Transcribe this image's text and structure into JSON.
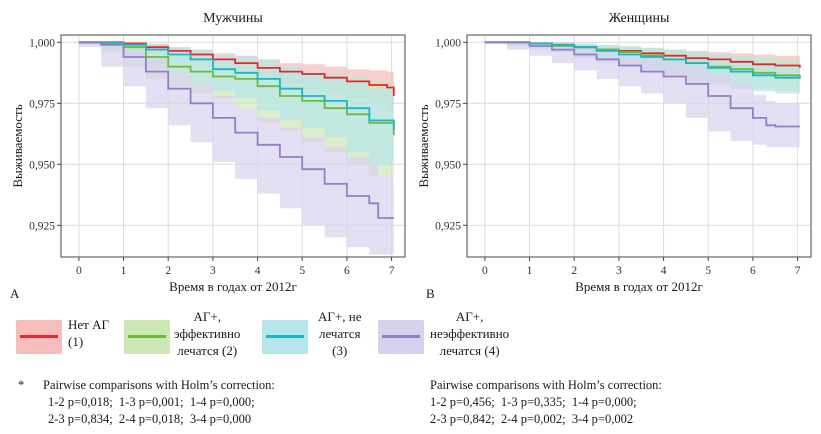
{
  "colors": {
    "series1": "#e8262b",
    "series1_band": "#f7bcbc",
    "series2": "#6dbb3a",
    "series2_band": "#cde7b5",
    "series3": "#19b6c8",
    "series3_band": "#b6e6ea",
    "series4": "#8f80c9",
    "series4_band": "#d8d1ee"
  },
  "chart_data": [
    {
      "type": "line",
      "panel_letter": "A",
      "title": "Мужчины",
      "xlabel": "Время в годах от 2012г",
      "ylabel": "Выживаемость",
      "xlim": [
        -0.4,
        7.3
      ],
      "ylim": [
        0.912,
        1.003
      ],
      "x_ticks": [
        "0",
        "1",
        "2",
        "3",
        "4",
        "5",
        "6",
        "7"
      ],
      "y_ticks": [
        "1,000",
        "0,975",
        "0,950",
        "0,925"
      ],
      "grid": true,
      "series": [
        {
          "name": "Нет АГ (1)",
          "x": [
            0,
            0.5,
            1,
            1.5,
            2,
            2.5,
            3,
            3.5,
            4,
            4.5,
            5,
            5.5,
            6,
            6.5,
            6.9,
            7.05
          ],
          "y": [
            1.0,
            1.0,
            0.9995,
            0.998,
            0.9965,
            0.995,
            0.993,
            0.9915,
            0.9895,
            0.988,
            0.987,
            0.9855,
            0.984,
            0.9825,
            0.9815,
            0.978
          ],
          "lower": [
            1.0,
            1.0,
            0.999,
            0.997,
            0.995,
            0.993,
            0.9905,
            0.9885,
            0.9865,
            0.9845,
            0.983,
            0.981,
            0.979,
            0.977,
            0.975,
            0.973
          ],
          "upper": [
            1.0,
            1.0,
            1.0,
            0.9993,
            0.998,
            0.997,
            0.9955,
            0.9945,
            0.993,
            0.9915,
            0.991,
            0.99,
            0.989,
            0.9885,
            0.988,
            0.986
          ]
        },
        {
          "name": "АГ+, эффективно лечатся (2)",
          "x": [
            0,
            0.5,
            1,
            1.5,
            2,
            2.5,
            3,
            3.5,
            4,
            4.5,
            5,
            5.5,
            6,
            6.5,
            7.05
          ],
          "y": [
            1.0,
            0.9995,
            0.998,
            0.994,
            0.99,
            0.988,
            0.986,
            0.985,
            0.982,
            0.978,
            0.976,
            0.973,
            0.9705,
            0.967,
            0.962
          ],
          "lower": [
            1.0,
            0.999,
            0.996,
            0.99,
            0.985,
            0.982,
            0.979,
            0.977,
            0.973,
            0.967,
            0.964,
            0.959,
            0.955,
            0.95,
            0.945
          ],
          "upper": [
            1.0,
            1.0,
            1.0,
            0.998,
            0.995,
            0.994,
            0.993,
            0.993,
            0.991,
            0.989,
            0.988,
            0.987,
            0.986,
            0.984,
            0.979
          ]
        },
        {
          "name": "АГ+, не лечатся (3)",
          "x": [
            0,
            0.5,
            1,
            1.5,
            2,
            2.5,
            3,
            3.5,
            4,
            4.5,
            5,
            5.5,
            6,
            6.5,
            7.05
          ],
          "y": [
            1.0,
            0.9998,
            0.999,
            0.997,
            0.995,
            0.993,
            0.989,
            0.9875,
            0.985,
            0.981,
            0.978,
            0.976,
            0.973,
            0.968,
            0.964
          ],
          "lower": [
            1.0,
            0.9993,
            0.997,
            0.994,
            0.991,
            0.988,
            0.983,
            0.98,
            0.977,
            0.972,
            0.968,
            0.965,
            0.961,
            0.955,
            0.95
          ],
          "upper": [
            1.0,
            1.0,
            1.0,
            0.9995,
            0.998,
            0.997,
            0.995,
            0.994,
            0.993,
            0.99,
            0.988,
            0.987,
            0.985,
            0.981,
            0.978
          ]
        },
        {
          "name": "АГ+, неэффективно лечатся (4)",
          "x": [
            0,
            0.5,
            1,
            1.5,
            2,
            2.5,
            3,
            3.5,
            4,
            4.5,
            5,
            5.5,
            6,
            6.5,
            6.7,
            7.05
          ],
          "y": [
            1.0,
            0.999,
            0.994,
            0.988,
            0.981,
            0.975,
            0.969,
            0.963,
            0.958,
            0.953,
            0.948,
            0.942,
            0.937,
            0.934,
            0.928,
            0.928
          ],
          "lower": [
            1.0,
            0.998,
            0.99,
            0.982,
            0.973,
            0.966,
            0.959,
            0.951,
            0.944,
            0.938,
            0.932,
            0.925,
            0.92,
            0.916,
            0.913,
            0.913
          ],
          "upper": [
            1.0,
            1.0,
            0.997,
            0.993,
            0.988,
            0.983,
            0.978,
            0.973,
            0.969,
            0.965,
            0.961,
            0.957,
            0.953,
            0.95,
            0.945,
            0.944
          ]
        }
      ]
    },
    {
      "type": "line",
      "panel_letter": "B",
      "title": "Женщины",
      "xlabel": "Время в годах от 2012г",
      "ylabel": "Выживаемость",
      "xlim": [
        -0.4,
        7.3
      ],
      "ylim": [
        0.912,
        1.003
      ],
      "x_ticks": [
        "0",
        "1",
        "2",
        "3",
        "4",
        "5",
        "6",
        "7"
      ],
      "y_ticks": [
        "1,000",
        "0,975",
        "0,950",
        "0,925"
      ],
      "grid": true,
      "series": [
        {
          "name": "Нет АГ (1)",
          "x": [
            0,
            0.5,
            1,
            1.5,
            2,
            2.5,
            3,
            3.5,
            4,
            4.5,
            5,
            5.5,
            6,
            6.5,
            7.05
          ],
          "y": [
            1.0,
            1.0,
            0.9995,
            0.999,
            0.998,
            0.997,
            0.9965,
            0.9955,
            0.9945,
            0.9935,
            0.993,
            0.992,
            0.991,
            0.9905,
            0.9895
          ],
          "lower": [
            1.0,
            1.0,
            0.999,
            0.998,
            0.9968,
            0.9955,
            0.9945,
            0.993,
            0.9918,
            0.9905,
            0.9895,
            0.988,
            0.987,
            0.986,
            0.985
          ],
          "upper": [
            1.0,
            1.0,
            1.0,
            0.9998,
            0.9992,
            0.9985,
            0.998,
            0.9975,
            0.997,
            0.9965,
            0.996,
            0.9955,
            0.995,
            0.9945,
            0.994
          ]
        },
        {
          "name": "АГ+, эффективно лечатся (2)",
          "x": [
            0,
            0.5,
            1,
            1.5,
            2,
            2.5,
            3,
            3.5,
            4,
            4.5,
            5,
            5.5,
            6,
            6.5,
            7.05
          ],
          "y": [
            1.0,
            1.0,
            0.9995,
            0.9985,
            0.998,
            0.997,
            0.996,
            0.9945,
            0.993,
            0.9915,
            0.99,
            0.989,
            0.9875,
            0.9865,
            0.9855
          ],
          "lower": [
            1.0,
            0.9998,
            0.9985,
            0.997,
            0.996,
            0.994,
            0.9925,
            0.9905,
            0.9885,
            0.9865,
            0.985,
            0.9835,
            0.982,
            0.981,
            0.98
          ],
          "upper": [
            1.0,
            1.0,
            1.0,
            0.9998,
            0.9995,
            0.999,
            0.9985,
            0.9978,
            0.997,
            0.996,
            0.995,
            0.9945,
            0.994,
            0.993,
            0.992
          ]
        },
        {
          "name": "АГ+, не лечатся (3)",
          "x": [
            0,
            0.5,
            1,
            1.5,
            2,
            2.5,
            3,
            3.5,
            4,
            4.5,
            5,
            5.5,
            6,
            6.5,
            7.05
          ],
          "y": [
            1.0,
            1.0,
            0.9995,
            0.999,
            0.998,
            0.9965,
            0.995,
            0.994,
            0.993,
            0.9915,
            0.9895,
            0.988,
            0.9865,
            0.9855,
            0.985
          ],
          "lower": [
            1.0,
            0.9997,
            0.9985,
            0.9975,
            0.996,
            0.9935,
            0.9915,
            0.99,
            0.9885,
            0.9865,
            0.984,
            0.9825,
            0.981,
            0.98,
            0.979
          ],
          "upper": [
            1.0,
            1.0,
            1.0,
            0.9998,
            0.9995,
            0.999,
            0.998,
            0.9975,
            0.997,
            0.996,
            0.995,
            0.994,
            0.993,
            0.992,
            0.9915
          ]
        },
        {
          "name": "АГ+, неэффективно лечатся (4)",
          "x": [
            0,
            0.5,
            1,
            1.5,
            2,
            2.5,
            3,
            3.5,
            4,
            4.5,
            5,
            5.5,
            6,
            6.3,
            6.5,
            7.05
          ],
          "y": [
            1.0,
            1.0,
            0.9985,
            0.997,
            0.995,
            0.993,
            0.9905,
            0.988,
            0.986,
            0.983,
            0.978,
            0.973,
            0.969,
            0.966,
            0.9655,
            0.9655
          ],
          "lower": [
            1.0,
            0.9995,
            0.997,
            0.9945,
            0.9915,
            0.9885,
            0.985,
            0.982,
            0.979,
            0.975,
            0.969,
            0.9635,
            0.9595,
            0.958,
            0.957,
            0.957
          ],
          "upper": [
            1.0,
            1.0,
            1.0,
            0.9993,
            0.998,
            0.9968,
            0.995,
            0.9935,
            0.992,
            0.9905,
            0.987,
            0.983,
            0.9785,
            0.976,
            0.975,
            0.975
          ]
        }
      ]
    }
  ],
  "legend": [
    {
      "label": "Нет АГ\n(1)"
    },
    {
      "label": "АГ+,\nэффективно\nлечатся (2)"
    },
    {
      "label": "АГ+, не\nлечатся\n(3)"
    },
    {
      "label": "АГ+,\nнеэффективно\nлечатся (4)"
    }
  ],
  "notes_left": {
    "asterisk": "*",
    "title": "Pairwise comparisons with Holm’s correction:",
    "line1": "1-2 p=0,018;  1-3 p=0,001;  1-4 p=0,000;",
    "line2": "2-3 p=0,834;  2-4 p=0,018;  3-4 p=0,000"
  },
  "notes_right": {
    "title": "Pairwise comparisons with Holm’s correction:",
    "line1": "1-2 p=0,456;  1-3 p=0,335;  1-4 p=0,000;",
    "line2": "2-3 p=0,842;  2-4 p=0,002;  3-4 p=0,002"
  }
}
